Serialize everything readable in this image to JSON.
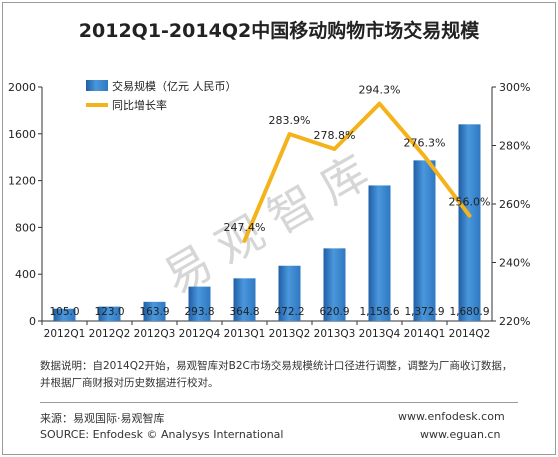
{
  "title": "2012Q1-2014Q2中国移动购物市场交易规模",
  "chart_data": {
    "type": "bar",
    "categories": [
      "2012Q1",
      "2012Q2",
      "2012Q3",
      "2012Q4",
      "2013Q1",
      "2013Q2",
      "2013Q3",
      "2013Q4",
      "2014Q1",
      "2014Q2"
    ],
    "series": [
      {
        "name": "交易规模（亿元 人民币）",
        "type": "bar",
        "axis": "left",
        "values": [
          105.0,
          123.0,
          163.9,
          293.8,
          364.8,
          472.2,
          620.9,
          1158.6,
          1372.9,
          1680.9
        ],
        "labels": [
          "105.0",
          "123.0",
          "163.9",
          "293.8",
          "364.8",
          "472.2",
          "620.9",
          "1,158.6",
          "1,372.9",
          "1,680.9"
        ],
        "color": "#2e7fc9"
      },
      {
        "name": "同比增长率",
        "type": "line",
        "axis": "right",
        "values": [
          null,
          null,
          null,
          null,
          247.4,
          283.9,
          278.8,
          294.3,
          276.3,
          256.0
        ],
        "labels": [
          "",
          "",
          "",
          "",
          "247.4%",
          "283.9%",
          "278.8%",
          "294.3%",
          "276.3%",
          "256.0%"
        ],
        "color": "#f5b31b"
      }
    ],
    "y_left": {
      "ticks": [
        "0",
        "400",
        "800",
        "1200",
        "1600",
        "2000"
      ],
      "ylim": [
        0,
        2000
      ]
    },
    "y_right": {
      "ticks": [
        "220%",
        "240%",
        "260%",
        "280%",
        "300%"
      ],
      "ylim": [
        220,
        300
      ]
    },
    "legend": "top-left",
    "grid": false
  },
  "watermark": "易观智库",
  "note_lines": [
    "数据说明：自2014Q2开始，易观智库对B2C市场交易规模统计口径进行调整，调整为厂商收订数据，",
    "并根据厂商财报对历史数据进行校对。"
  ],
  "footer": {
    "source_cn": "来源：易观国际·易观智库",
    "url1": "www.enfodesk.com",
    "source_en": "SOURCE: Enfodesk © Analysys International",
    "url2": "www.eguan.cn"
  }
}
